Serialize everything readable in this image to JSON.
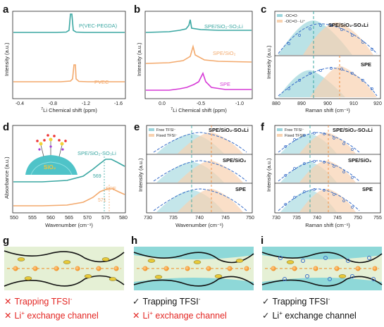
{
  "panels": {
    "a": {
      "label": "a",
      "xlabel_prefix": "7",
      "xlabel_rest": "Li Chemical shift (ppm)",
      "ylabel": "Intensity (a.u.)",
      "xticks": [
        "-0.4",
        "-0.8",
        "-1.2",
        "-1.6"
      ],
      "series": [
        {
          "name": "P(VEC-PEGDA)",
          "color": "#3aa7a2"
        },
        {
          "name": "PVEC",
          "color": "#f3a96c"
        }
      ]
    },
    "b": {
      "label": "b",
      "xlabel_prefix": "7",
      "xlabel_rest": "Li Chemical shift (ppm)",
      "ylabel": "Intensity (a.u.)",
      "xticks": [
        "0.0",
        "-0.5",
        "-1.0"
      ],
      "series": [
        {
          "name": "SPE/SiO₂-SO₃Li",
          "color": "#3aa7a2"
        },
        {
          "name": "SPE/SiO₂",
          "color": "#f3a96c"
        },
        {
          "name": "SPE",
          "color": "#d63ad6"
        }
      ]
    },
    "c": {
      "label": "c",
      "xlabel": "Raman shift (cm⁻¹)",
      "ylabel": "Intensity (a.u.)",
      "xticks": [
        "880",
        "890",
        "900",
        "910",
        "920"
      ],
      "legend": [
        "-OC=O∙",
        "-OC=O∙∙∙Li⁺"
      ],
      "sublabels": [
        "SPE/SiO₂-SO₃Li",
        "SPE"
      ]
    },
    "d": {
      "label": "d",
      "xlabel": "Wavenumber (cm⁻¹)",
      "ylabel": "Absorbance (a.u.)",
      "xticks": [
        "550",
        "555",
        "560",
        "565",
        "570",
        "575",
        "580"
      ],
      "inset_label": "SiO₂",
      "series": [
        {
          "name": "SPE/SiO₂-SO₃Li",
          "peak": "569",
          "color": "#3aa7a2"
        },
        {
          "name": "SPE",
          "peak": "571",
          "color": "#f3a96c"
        }
      ]
    },
    "e": {
      "label": "e",
      "xlabel": "Wavenumber (cm⁻¹)",
      "ylabel": "Intensity (a.u.)",
      "xticks": [
        "730",
        "735",
        "740",
        "745",
        "750"
      ],
      "legend": [
        "Free TFSI⁻",
        "Fixed TFSI⁻"
      ],
      "sublabels": [
        "SPE/SiO₂-SO₃Li",
        "SPE/SiO₂",
        "SPE"
      ]
    },
    "f": {
      "label": "f",
      "xlabel": "Raman shift (cm⁻¹)",
      "ylabel": "Intensity (a.u.)",
      "xticks": [
        "730",
        "735",
        "740",
        "745",
        "750",
        "755"
      ],
      "legend": [
        "Free TFSI⁻",
        "Fixed TFSI⁻"
      ],
      "sublabels": [
        "SPE/SiO₂-SO₃Li",
        "SPE/SiO₂",
        "SPE"
      ]
    },
    "g": {
      "label": "g",
      "line1": "Trapping TFSI",
      "line1_sup": "-",
      "line2_a": "Li",
      "line2_sup": "+",
      "line2_b": " exchange channel"
    },
    "h": {
      "label": "h",
      "line1": "Trapping TFSI",
      "line1_sup": "-",
      "line2_a": "Li",
      "line2_sup": "+",
      "line2_b": " exchange channel"
    },
    "i": {
      "label": "i",
      "line1": "Trapping TFSI",
      "line1_sup": "-",
      "line2_a": "Li",
      "line2_sup": "+",
      "line2_b": " exchange channel"
    }
  },
  "marks": {
    "cross": "✕",
    "check": "✓"
  },
  "colors": {
    "teal": "#3aa7a2",
    "orange": "#f3a96c",
    "magenta": "#d63ad6",
    "blue_dash": "#3a6fc9",
    "red": "#e32522",
    "panel_bg": "#e5f0d5"
  }
}
